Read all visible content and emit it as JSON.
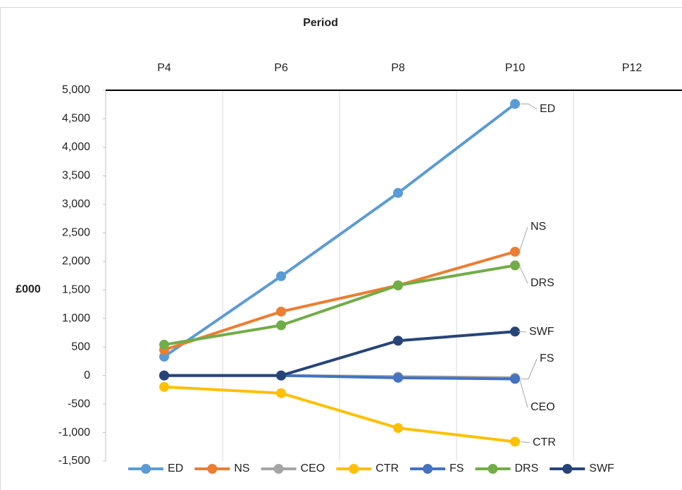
{
  "chart_data": {
    "type": "line",
    "x_axis_title": "Period",
    "y_axis_title": "£000",
    "categories": [
      "P4",
      "P6",
      "P8",
      "P10",
      "P12"
    ],
    "series": [
      {
        "name": "ED",
        "color": "#5b9bd5",
        "values": [
          330,
          1740,
          3200,
          4760,
          null
        ]
      },
      {
        "name": "NS",
        "color": "#ed7d31",
        "values": [
          450,
          1120,
          1580,
          2170,
          null
        ]
      },
      {
        "name": "CEO",
        "color": "#a5a5a5",
        "values": [
          0,
          0,
          -20,
          -40,
          null
        ]
      },
      {
        "name": "CTR",
        "color": "#ffc000",
        "values": [
          -200,
          -310,
          -920,
          -1160,
          null
        ]
      },
      {
        "name": "FS",
        "color": "#4472c4",
        "values": [
          0,
          0,
          -40,
          -60,
          null
        ]
      },
      {
        "name": "DRS",
        "color": "#70ad47",
        "values": [
          540,
          880,
          1580,
          1930,
          null
        ]
      },
      {
        "name": "SWF",
        "color": "#264478",
        "values": [
          0,
          0,
          610,
          770,
          null
        ]
      }
    ],
    "ylim": [
      -1500,
      5000
    ],
    "yticks": [
      {
        "value": 5000,
        "label": "5,000"
      },
      {
        "value": 4500,
        "label": "4,500"
      },
      {
        "value": 4000,
        "label": "4,000"
      },
      {
        "value": 3500,
        "label": "3,500"
      },
      {
        "value": 3000,
        "label": "3,000"
      },
      {
        "value": 2500,
        "label": "2,500"
      },
      {
        "value": 2000,
        "label": "2,000"
      },
      {
        "value": 1500,
        "label": "1,500"
      },
      {
        "value": 1000,
        "label": "1,000"
      },
      500,
      0,
      -500,
      {
        "value": -1000,
        "label": "-1,000"
      },
      {
        "value": -1500,
        "label": "-1,500"
      }
    ],
    "grid": true,
    "legend": "bottom"
  }
}
